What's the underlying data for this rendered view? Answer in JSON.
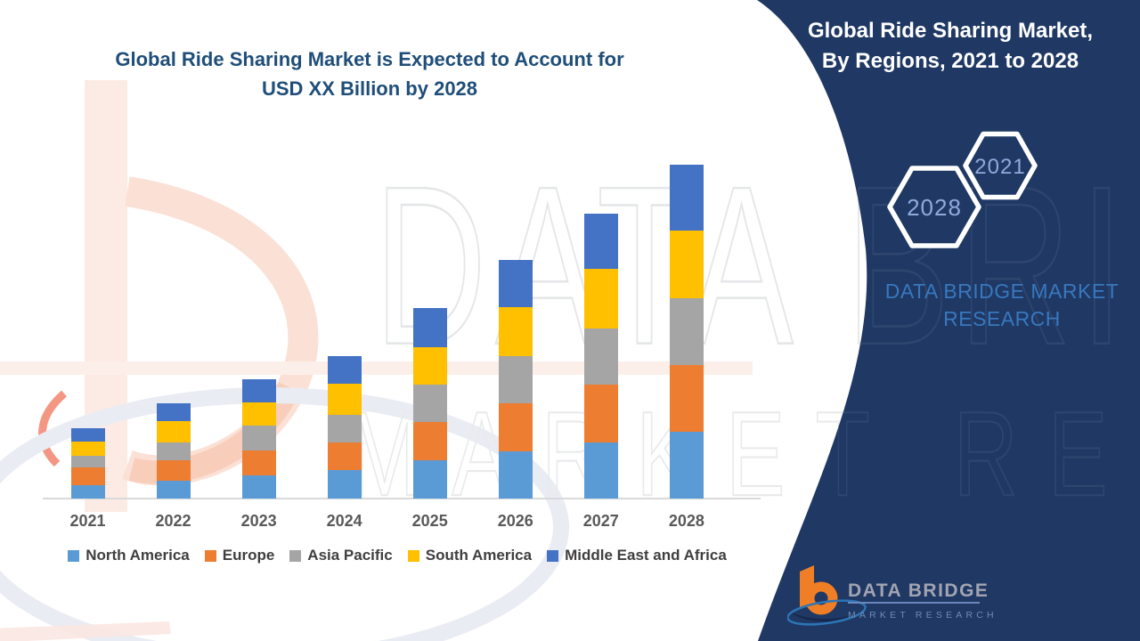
{
  "chart": {
    "title_line1": "Global Ride Sharing Market is Expected to Account for",
    "title_line2": "USD XX Billion by 2028",
    "title_color": "#1F4E79"
  },
  "chart_data": {
    "type": "bar",
    "stacked": true,
    "title": "Global Ride Sharing Market is Expected to Account for USD XX Billion by 2028",
    "xlabel": "",
    "ylabel": "",
    "values_unit": "relative index (y-axis not shown in source; USD value undisclosed as XX)",
    "grid": false,
    "y_axis_visible": false,
    "legend_position": "bottom",
    "categories": [
      "2021",
      "2022",
      "2023",
      "2024",
      "2025",
      "2026",
      "2027",
      "2028"
    ],
    "series": [
      {
        "name": "North America",
        "color": "#5B9BD5",
        "values": [
          15.4,
          20.4,
          26.0,
          32.0,
          42.7,
          52.7,
          62.7,
          74.7
        ]
      },
      {
        "name": "Europe",
        "color": "#ED7D31",
        "values": [
          19.3,
          22.6,
          27.7,
          31.0,
          43.7,
          54.0,
          65.0,
          75.0
        ]
      },
      {
        "name": "Asia Pacific",
        "color": "#A5A5A5",
        "values": [
          13.3,
          20.4,
          28.3,
          31.4,
          41.6,
          53.7,
          63.3,
          75.7
        ]
      },
      {
        "name": "South America",
        "color": "#FFC000",
        "values": [
          16.4,
          23.3,
          26.4,
          35.0,
          42.4,
          54.3,
          67.0,
          75.6
        ]
      },
      {
        "name": "Middle East and Africa",
        "color": "#4472C4",
        "values": [
          15.0,
          20.0,
          26.0,
          31.0,
          44.0,
          53.0,
          62.4,
          74.4
        ]
      }
    ],
    "totals": [
      79.4,
      106.7,
      134.4,
      160.4,
      214.4,
      267.7,
      320.4,
      375.4
    ]
  },
  "sidebar": {
    "bg": "#1F3864",
    "title_line1": "Global Ride Sharing Market,",
    "title_line2": "By Regions, 2021 to 2028",
    "hex_small_year": "2021",
    "hex_large_year": "2028",
    "hex_year_color": "#8FAADC",
    "brand_line1": "DATA BRIDGE MARKET",
    "brand_line2": "RESEARCH",
    "brand_color": "#3878BE"
  },
  "footer_logo": {
    "brand": "DATA BRIDGE",
    "sub": "MARKET RESEARCH"
  },
  "watermark": {
    "row1": "DATA BRIDGE",
    "row2": "MARKET RESEARCH"
  }
}
